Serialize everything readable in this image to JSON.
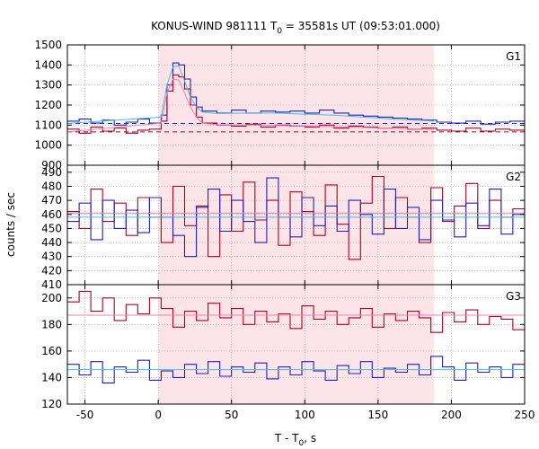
{
  "chart_data": {
    "type": "line",
    "title_prefix": "KONUS-WIND 981111 T",
    "title_sub": "0",
    "title_suffix": " = 35581s UT (09:53:01.000)",
    "ylabel": "counts / sec",
    "xlabel_prefix": "T - T",
    "xlabel_sub": "0",
    "xlabel_suffix": ", s",
    "xlim": [
      -62,
      250
    ],
    "x_ticks": [
      -50,
      0,
      50,
      100,
      150,
      200,
      250
    ],
    "shaded_interval": [
      0,
      188
    ],
    "grid": true,
    "colors": {
      "shade": "#fde4e8",
      "red": "#b00020",
      "blue": "#2020c0",
      "cyan": "#40c0e0",
      "pink": "#f080b0",
      "grid": "#999999"
    },
    "panels": [
      {
        "label": "G1",
        "ylim": [
          900,
          1500
        ],
        "y_ticks": [
          900,
          1000,
          1100,
          1200,
          1300,
          1400,
          1500
        ],
        "background_levels": {
          "blue": 1108,
          "red": 1066
        },
        "series": [
          {
            "color": "blue",
            "x": [
              -62,
              -54,
              -46,
              -38,
              -30,
              -22,
              -14,
              -6,
              2,
              6,
              10,
              14,
              18,
              22,
              26,
              30,
              40,
              50,
              60,
              70,
              80,
              90,
              100,
              110,
              120,
              130,
              140,
              150,
              160,
              170,
              180,
              190,
              200,
              210,
              220,
              230,
              240,
              250
            ],
            "y": [
              1120,
              1130,
              1110,
              1125,
              1100,
              1115,
              1130,
              1110,
              1150,
              1300,
              1410,
              1400,
              1330,
              1240,
              1190,
              1170,
              1160,
              1175,
              1160,
              1170,
              1165,
              1170,
              1160,
              1175,
              1160,
              1150,
              1145,
              1140,
              1135,
              1130,
              1125,
              1115,
              1110,
              1120,
              1105,
              1115,
              1120,
              1125
            ]
          },
          {
            "color": "red",
            "x": [
              -62,
              -54,
              -46,
              -38,
              -30,
              -22,
              -14,
              -6,
              2,
              6,
              10,
              14,
              18,
              22,
              26,
              30,
              40,
              50,
              60,
              70,
              80,
              90,
              100,
              110,
              120,
              130,
              140,
              150,
              160,
              170,
              180,
              190,
              200,
              210,
              220,
              230,
              240,
              250
            ],
            "y": [
              1080,
              1060,
              1090,
              1070,
              1085,
              1060,
              1075,
              1080,
              1120,
              1270,
              1350,
              1340,
              1280,
              1200,
              1140,
              1110,
              1100,
              1095,
              1105,
              1090,
              1100,
              1095,
              1090,
              1100,
              1085,
              1095,
              1090,
              1085,
              1090,
              1080,
              1085,
              1075,
              1070,
              1085,
              1070,
              1080,
              1075,
              1070
            ]
          }
        ],
        "fits": [
          {
            "color": "cyan",
            "x": [
              -62,
              2,
              6,
              10,
              14,
              18,
              22,
              26,
              30,
              40,
              60,
              80,
              100,
              120,
              140,
              160,
              188
            ],
            "y": [
              1108,
              1140,
              1300,
              1390,
              1395,
              1320,
              1240,
              1190,
              1165,
              1158,
              1160,
              1160,
              1155,
              1150,
              1140,
              1130,
              1120
            ]
          },
          {
            "color": "pink",
            "x": [
              -62,
              2,
              6,
              10,
              14,
              18,
              22,
              26,
              30,
              40,
              60,
              80,
              100,
              120,
              140,
              160,
              188
            ],
            "y": [
              1066,
              1110,
              1260,
              1330,
              1325,
              1260,
              1190,
              1140,
              1110,
              1102,
              1100,
              1098,
              1095,
              1092,
              1088,
              1085,
              1078
            ]
          }
        ]
      },
      {
        "label": "G2",
        "ylim": [
          410,
          495
        ],
        "y_ticks": [
          410,
          420,
          430,
          440,
          450,
          460,
          470,
          480,
          490
        ],
        "fit_levels": {
          "pink": 461,
          "cyan": 458
        },
        "series": [
          {
            "color": "red",
            "x": [
              -62,
              -54,
              -46,
              -38,
              -30,
              -22,
              -14,
              -6,
              2,
              10,
              18,
              26,
              34,
              42,
              50,
              58,
              66,
              74,
              82,
              90,
              98,
              106,
              114,
              122,
              130,
              138,
              146,
              154,
              162,
              170,
              178,
              186,
              194,
              202,
              210,
              218,
              226,
              234,
              242,
              250
            ],
            "y": [
              462,
              450,
              478,
              455,
              468,
              445,
              472,
              458,
              440,
              480,
              452,
              466,
              430,
              474,
              448,
              483,
              456,
              470,
              438,
              476,
              462,
              445,
              481,
              453,
              428,
              468,
              487,
              450,
              472,
              458,
              440,
              479,
              455,
              466,
              482,
              450,
              470,
              458,
              464,
              452
            ]
          },
          {
            "color": "blue",
            "x": [
              -62,
              -54,
              -46,
              -38,
              -30,
              -22,
              -14,
              -6,
              2,
              10,
              18,
              26,
              34,
              42,
              50,
              58,
              66,
              74,
              82,
              90,
              98,
              106,
              114,
              122,
              130,
              138,
              146,
              154,
              162,
              170,
              178,
              186,
              194,
              202,
              210,
              218,
              226,
              234,
              242,
              250
            ],
            "y": [
              455,
              468,
              442,
              470,
              450,
              463,
              447,
              472,
              458,
              445,
              430,
              465,
              478,
              448,
              470,
              455,
              440,
              486,
              458,
              444,
              472,
              452,
              466,
              448,
              470,
              460,
              446,
              478,
              450,
              465,
              442,
              470,
              456,
              444,
              468,
              452,
              478,
              446,
              460,
              470
            ]
          }
        ]
      },
      {
        "label": "G3",
        "ylim": [
          120,
          210
        ],
        "y_ticks": [
          120,
          140,
          160,
          180,
          200
        ],
        "fit_levels": {
          "pink": 187,
          "cyan": 146
        },
        "series": [
          {
            "color": "red",
            "x": [
              -62,
              -54,
              -46,
              -38,
              -30,
              -22,
              -14,
              -6,
              2,
              10,
              18,
              26,
              34,
              42,
              50,
              58,
              66,
              74,
              82,
              90,
              98,
              106,
              114,
              122,
              130,
              138,
              146,
              154,
              162,
              170,
              178,
              186,
              194,
              202,
              210,
              218,
              226,
              234,
              242,
              250
            ],
            "y": [
              197,
              205,
              190,
              200,
              183,
              195,
              188,
              200,
              192,
              178,
              190,
              183,
              196,
              185,
              192,
              180,
              190,
              182,
              188,
              177,
              194,
              184,
              190,
              180,
              185,
              192,
              178,
              188,
              183,
              190,
              185,
              174,
              189,
              182,
              191,
              180,
              186,
              184,
              176,
              180
            ]
          },
          {
            "color": "blue",
            "x": [
              -62,
              -54,
              -46,
              -38,
              -30,
              -22,
              -14,
              -6,
              2,
              10,
              18,
              26,
              34,
              42,
              50,
              58,
              66,
              74,
              82,
              90,
              98,
              106,
              114,
              122,
              130,
              138,
              146,
              154,
              162,
              170,
              178,
              186,
              194,
              202,
              210,
              218,
              226,
              234,
              242,
              250
            ],
            "y": [
              150,
              142,
              152,
              136,
              148,
              144,
              153,
              138,
              145,
              140,
              150,
              143,
              152,
              141,
              148,
              144,
              151,
              139,
              148,
              142,
              152,
              145,
              138,
              149,
              143,
              152,
              140,
              147,
              144,
              150,
              142,
              156,
              148,
              138,
              151,
              144,
              148,
              140,
              150,
              145
            ]
          }
        ]
      }
    ]
  }
}
